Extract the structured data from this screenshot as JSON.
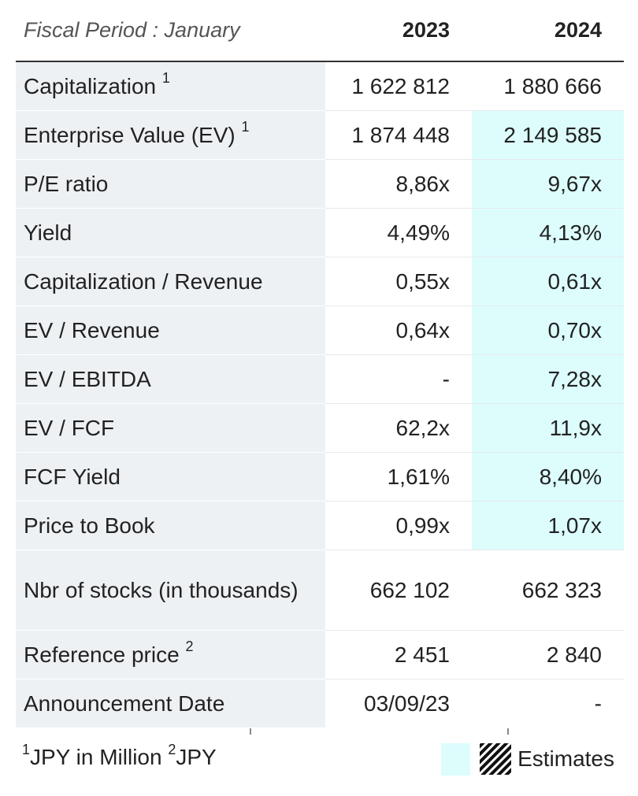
{
  "header": {
    "period_label": "Fiscal Period : January",
    "years": [
      "2023",
      "2024"
    ]
  },
  "rows": [
    {
      "label": "Capitalization",
      "sup": "1",
      "v2023": "1 622 812",
      "v2024": "1 880 666",
      "estimate_2024": false
    },
    {
      "label": "Enterprise Value (EV)",
      "sup": "1",
      "v2023": "1 874 448",
      "v2024": "2 149 585",
      "estimate_2024": true
    },
    {
      "label": "P/E ratio",
      "sup": "",
      "v2023": "8,86x",
      "v2024": "9,67x",
      "estimate_2024": true
    },
    {
      "label": "Yield",
      "sup": "",
      "v2023": "4,49%",
      "v2024": "4,13%",
      "estimate_2024": true
    },
    {
      "label": "Capitalization / Revenue",
      "sup": "",
      "v2023": "0,55x",
      "v2024": "0,61x",
      "estimate_2024": true
    },
    {
      "label": "EV / Revenue",
      "sup": "",
      "v2023": "0,64x",
      "v2024": "0,70x",
      "estimate_2024": true
    },
    {
      "label": "EV / EBITDA",
      "sup": "",
      "v2023": "-",
      "v2024": "7,28x",
      "estimate_2024": true
    },
    {
      "label": "EV / FCF",
      "sup": "",
      "v2023": "62,2x",
      "v2024": "11,9x",
      "estimate_2024": true
    },
    {
      "label": "FCF Yield",
      "sup": "",
      "v2023": "1,61%",
      "v2024": "8,40%",
      "estimate_2024": true
    },
    {
      "label": "Price to Book",
      "sup": "",
      "v2023": "0,99x",
      "v2024": "1,07x",
      "estimate_2024": true
    },
    {
      "label": "Nbr of stocks (in thousands)",
      "sup": "",
      "v2023": "662 102",
      "v2024": "662 323",
      "estimate_2024": false
    },
    {
      "label": "Reference price",
      "sup": "2",
      "v2023": "2 451",
      "v2024": "2 840",
      "estimate_2024": false
    },
    {
      "label": "Announcement Date",
      "sup": "",
      "v2023": "03/09/23",
      "v2024": "-",
      "estimate_2024": false
    }
  ],
  "footer": {
    "note1_sup": "1",
    "note1_text": "JPY in Million",
    "note2_sup": "2",
    "note2_text": "JPY",
    "legend_label": "Estimates"
  },
  "colors": {
    "estimate_bg": "#ddfdfd",
    "label_bg": "#eef1f4",
    "header_rule": "#333333"
  }
}
